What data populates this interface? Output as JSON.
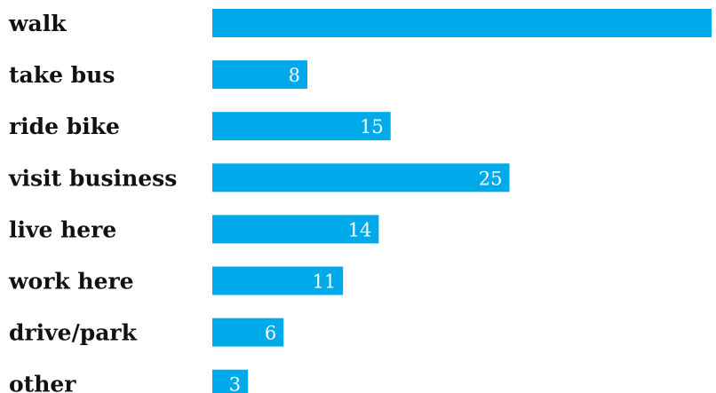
{
  "chart_data": {
    "type": "bar",
    "orientation": "horizontal",
    "categories": [
      "walk",
      "take bus",
      "ride bike",
      "visit business",
      "live here",
      "work here",
      "drive/park",
      "other"
    ],
    "values": [
      42,
      8,
      15,
      25,
      14,
      11,
      6,
      3
    ],
    "value_labels": [
      "",
      "8",
      "15",
      "25",
      "14",
      "11",
      "6",
      "3"
    ],
    "title": "",
    "xlabel": "",
    "ylabel": "",
    "xlim": [
      0,
      42
    ],
    "grid": false,
    "legend": "none",
    "bar_color": "#00a9e9",
    "category_label_color": "#111111",
    "value_label_color": "#ffffff"
  }
}
